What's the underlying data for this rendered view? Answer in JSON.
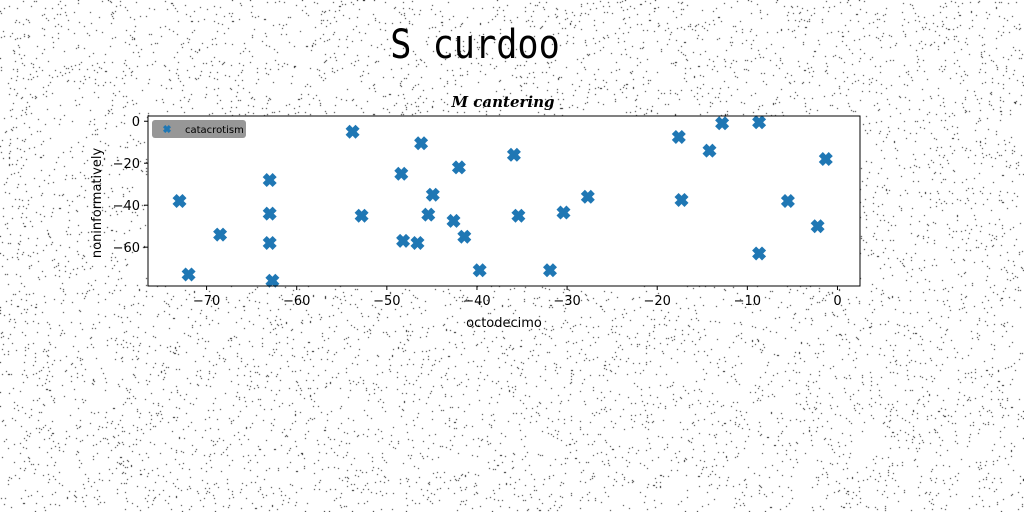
{
  "figure": {
    "suptitle": "S curdoo"
  },
  "chart_data": {
    "type": "scatter",
    "title": "M cantering",
    "xlabel": "octodecimo",
    "ylabel": "noninformatively",
    "xlim": [
      -76.5,
      2.5
    ],
    "ylim": [
      -78.5,
      2.5
    ],
    "x_ticks": [
      -70,
      -60,
      -50,
      -40,
      -30,
      -20,
      -10,
      0
    ],
    "y_ticks": [
      0,
      -20,
      -40,
      -60
    ],
    "grid": false,
    "legend_position": "upper-left",
    "marker": "X",
    "series": [
      {
        "name": "catacrotism",
        "color": "#1f77b4",
        "points": [
          [
            -73,
            -38
          ],
          [
            -72,
            -73
          ],
          [
            -68.5,
            -54
          ],
          [
            -63,
            -28
          ],
          [
            -63,
            -44
          ],
          [
            -63,
            -58
          ],
          [
            -62.7,
            -76
          ],
          [
            -53.8,
            -5
          ],
          [
            -52.8,
            -45
          ],
          [
            -48.4,
            -25
          ],
          [
            -48.2,
            -57
          ],
          [
            -46.6,
            -58
          ],
          [
            -46.2,
            -10.5
          ],
          [
            -45.4,
            -44.5
          ],
          [
            -44.9,
            -35
          ],
          [
            -42.6,
            -47.5
          ],
          [
            -42,
            -22
          ],
          [
            -41.4,
            -55
          ],
          [
            -39.7,
            -71
          ],
          [
            -35.9,
            -16
          ],
          [
            -35.4,
            -45
          ],
          [
            -31.9,
            -71
          ],
          [
            -30.4,
            -43.5
          ],
          [
            -27.7,
            -36
          ],
          [
            -17.6,
            -7.5
          ],
          [
            -17.3,
            -37.5
          ],
          [
            -14.2,
            -14
          ],
          [
            -12.8,
            -1
          ],
          [
            -8.7,
            -0.5
          ],
          [
            -8.7,
            -63
          ],
          [
            -5.5,
            -38
          ],
          [
            -2.2,
            -50
          ],
          [
            -1.3,
            -18
          ]
        ]
      }
    ]
  }
}
